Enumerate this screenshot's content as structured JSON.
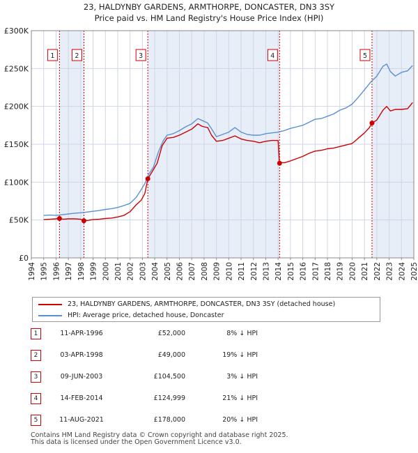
{
  "title_line1": "23, HALDYNBY GARDENS, ARMTHORPE, DONCASTER, DN3 3SY",
  "title_line2": "Price paid vs. HM Land Registry's House Price Index (HPI)",
  "chart_data": {
    "type": "line",
    "title": "23, HALDYNBY GARDENS, ARMTHORPE, DONCASTER, DN3 3SY — Price paid vs. HM Land Registry's House Price Index (HPI)",
    "xlim": [
      1994,
      2025
    ],
    "ylim": [
      0,
      300000
    ],
    "x_ticks": [
      "1994",
      "1995",
      "1996",
      "1997",
      "1998",
      "1999",
      "2000",
      "2001",
      "2002",
      "2003",
      "2004",
      "2005",
      "2006",
      "2007",
      "2008",
      "2009",
      "2010",
      "2011",
      "2012",
      "2013",
      "2014",
      "2015",
      "2016",
      "2017",
      "2018",
      "2019",
      "2020",
      "2021",
      "2022",
      "2023",
      "2024",
      "2025"
    ],
    "y_ticks": [
      {
        "value": 0,
        "label": "£0"
      },
      {
        "value": 50000,
        "label": "£50K"
      },
      {
        "value": 100000,
        "label": "£100K"
      },
      {
        "value": 150000,
        "label": "£150K"
      },
      {
        "value": 200000,
        "label": "£200K"
      },
      {
        "value": 250000,
        "label": "£250K"
      },
      {
        "value": 300000,
        "label": "£300K"
      }
    ],
    "colors": {
      "property": "#cc0000",
      "hpi": "#5b8fd1",
      "band": "#e8eef8",
      "grid": "#cfd6e4"
    },
    "series": [
      {
        "name": "23, HALDYNBY GARDENS, ARMTHORPE, DONCASTER, DN3 3SY (detached house)",
        "color": "#cc0000",
        "points": [
          [
            1995.0,
            50500
          ],
          [
            1995.5,
            51000
          ],
          [
            1996.0,
            51500
          ],
          [
            1996.28,
            52000
          ],
          [
            1996.6,
            51000
          ],
          [
            1997.0,
            51500
          ],
          [
            1997.5,
            51500
          ],
          [
            1998.0,
            51000
          ],
          [
            1998.26,
            49000
          ],
          [
            1998.6,
            49500
          ],
          [
            1999.0,
            50500
          ],
          [
            1999.5,
            51000
          ],
          [
            2000.0,
            52000
          ],
          [
            2000.5,
            52500
          ],
          [
            2001.0,
            54000
          ],
          [
            2001.5,
            56000
          ],
          [
            2002.0,
            61000
          ],
          [
            2002.5,
            70000
          ],
          [
            2002.9,
            76000
          ],
          [
            2003.2,
            85000
          ],
          [
            2003.44,
            104500
          ],
          [
            2003.8,
            114000
          ],
          [
            2004.2,
            125000
          ],
          [
            2004.6,
            148000
          ],
          [
            2005.0,
            158000
          ],
          [
            2005.5,
            159000
          ],
          [
            2006.0,
            162000
          ],
          [
            2006.5,
            166000
          ],
          [
            2007.0,
            170000
          ],
          [
            2007.5,
            177000
          ],
          [
            2007.8,
            174000
          ],
          [
            2008.0,
            173000
          ],
          [
            2008.3,
            172000
          ],
          [
            2008.6,
            162000
          ],
          [
            2009.0,
            154000
          ],
          [
            2009.5,
            155000
          ],
          [
            2010.0,
            158000
          ],
          [
            2010.5,
            161000
          ],
          [
            2011.0,
            157000
          ],
          [
            2011.5,
            155000
          ],
          [
            2012.0,
            154000
          ],
          [
            2012.5,
            152000
          ],
          [
            2013.0,
            154000
          ],
          [
            2013.5,
            155000
          ],
          [
            2014.0,
            155000
          ],
          [
            2014.1,
            126000
          ],
          [
            2014.5,
            125500
          ],
          [
            2015.0,
            128000
          ],
          [
            2015.5,
            131000
          ],
          [
            2016.0,
            134000
          ],
          [
            2016.5,
            138000
          ],
          [
            2017.0,
            141000
          ],
          [
            2017.5,
            142000
          ],
          [
            2018.0,
            144000
          ],
          [
            2018.5,
            145000
          ],
          [
            2019.0,
            147000
          ],
          [
            2019.5,
            149000
          ],
          [
            2020.0,
            151000
          ],
          [
            2020.5,
            158000
          ],
          [
            2021.0,
            165000
          ],
          [
            2021.4,
            172000
          ],
          [
            2021.61,
            178000
          ],
          [
            2022.0,
            182000
          ],
          [
            2022.5,
            195000
          ],
          [
            2022.8,
            200000
          ],
          [
            2023.1,
            194000
          ],
          [
            2023.5,
            196000
          ],
          [
            2024.0,
            196000
          ],
          [
            2024.5,
            197000
          ],
          [
            2024.9,
            205000
          ]
        ]
      },
      {
        "name": "HPI: Average price, detached house, Doncaster",
        "color": "#5b8fd1",
        "points": [
          [
            1995.0,
            56000
          ],
          [
            1995.5,
            56500
          ],
          [
            1996.0,
            56000
          ],
          [
            1996.5,
            57000
          ],
          [
            1997.0,
            58000
          ],
          [
            1997.5,
            59000
          ],
          [
            1998.0,
            59500
          ],
          [
            1998.5,
            60500
          ],
          [
            1999.0,
            61500
          ],
          [
            1999.5,
            62500
          ],
          [
            2000.0,
            64000
          ],
          [
            2000.5,
            65000
          ],
          [
            2001.0,
            66500
          ],
          [
            2001.5,
            69000
          ],
          [
            2002.0,
            72000
          ],
          [
            2002.5,
            80000
          ],
          [
            2002.9,
            90000
          ],
          [
            2003.2,
            98000
          ],
          [
            2003.5,
            110000
          ],
          [
            2003.9,
            120000
          ],
          [
            2004.3,
            140000
          ],
          [
            2004.7,
            155000
          ],
          [
            2005.0,
            162000
          ],
          [
            2005.5,
            164000
          ],
          [
            2006.0,
            168000
          ],
          [
            2006.5,
            173000
          ],
          [
            2007.0,
            177000
          ],
          [
            2007.5,
            184000
          ],
          [
            2007.9,
            181000
          ],
          [
            2008.3,
            178000
          ],
          [
            2008.7,
            168000
          ],
          [
            2009.0,
            160000
          ],
          [
            2009.5,
            163000
          ],
          [
            2010.0,
            166000
          ],
          [
            2010.5,
            172000
          ],
          [
            2011.0,
            166000
          ],
          [
            2011.5,
            163000
          ],
          [
            2012.0,
            162000
          ],
          [
            2012.5,
            162000
          ],
          [
            2013.0,
            164000
          ],
          [
            2013.5,
            165000
          ],
          [
            2014.0,
            166000
          ],
          [
            2014.5,
            168000
          ],
          [
            2015.0,
            171000
          ],
          [
            2015.5,
            173000
          ],
          [
            2016.0,
            175000
          ],
          [
            2016.5,
            179000
          ],
          [
            2017.0,
            183000
          ],
          [
            2017.5,
            184000
          ],
          [
            2018.0,
            187000
          ],
          [
            2018.5,
            190000
          ],
          [
            2019.0,
            195000
          ],
          [
            2019.5,
            198000
          ],
          [
            2020.0,
            203000
          ],
          [
            2020.5,
            212000
          ],
          [
            2021.0,
            222000
          ],
          [
            2021.5,
            232000
          ],
          [
            2022.0,
            240000
          ],
          [
            2022.5,
            253000
          ],
          [
            2022.8,
            256000
          ],
          [
            2023.1,
            246000
          ],
          [
            2023.5,
            240000
          ],
          [
            2024.0,
            245000
          ],
          [
            2024.5,
            247000
          ],
          [
            2024.9,
            254000
          ]
        ]
      }
    ],
    "sale_markers": [
      {
        "label": "1",
        "x": 1996.28,
        "price": 52000
      },
      {
        "label": "2",
        "x": 1998.26,
        "price": 49000
      },
      {
        "label": "3",
        "x": 2003.44,
        "price": 104500
      },
      {
        "label": "4",
        "x": 2014.12,
        "price": 124999
      },
      {
        "label": "5",
        "x": 2021.61,
        "price": 178000
      }
    ],
    "shaded_periods": [
      [
        1996.28,
        1998.26
      ],
      [
        2003.44,
        2014.12
      ],
      [
        2021.61,
        2025.0
      ]
    ]
  },
  "legend": {
    "property_label": "23, HALDYNBY GARDENS, ARMTHORPE, DONCASTER, DN3 3SY (detached house)",
    "hpi_label": "HPI: Average price, detached house, Doncaster"
  },
  "sales": [
    {
      "num": "1",
      "date": "11-APR-1996",
      "price": "£52,000",
      "hpi": "8% ↓ HPI"
    },
    {
      "num": "2",
      "date": "03-APR-1998",
      "price": "£49,000",
      "hpi": "19% ↓ HPI"
    },
    {
      "num": "3",
      "date": "09-JUN-2003",
      "price": "£104,500",
      "hpi": "3% ↓ HPI"
    },
    {
      "num": "4",
      "date": "14-FEB-2014",
      "price": "£124,999",
      "hpi": "21% ↓ HPI"
    },
    {
      "num": "5",
      "date": "11-AUG-2021",
      "price": "£178,000",
      "hpi": "20% ↓ HPI"
    }
  ],
  "footer_line1": "Contains HM Land Registry data © Crown copyright and database right 2025.",
  "footer_line2": "This data is licensed under the Open Government Licence v3.0."
}
